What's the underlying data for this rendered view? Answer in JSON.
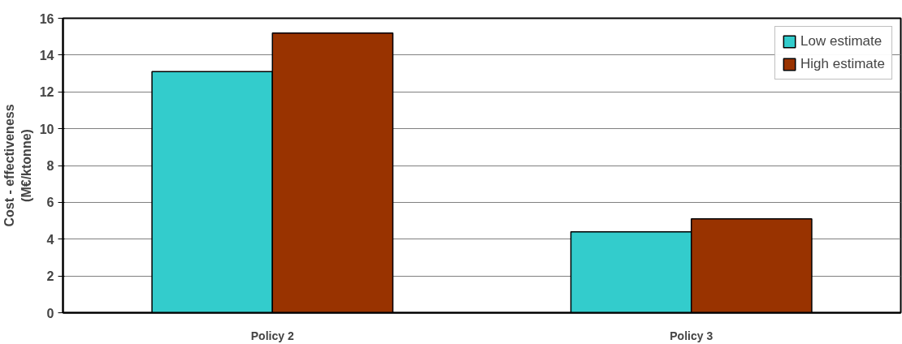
{
  "chart_data": {
    "type": "bar",
    "ylabel": "Cost - effectiveness\n(M€/ktonne)",
    "categories": [
      "Policy 2",
      "Policy 3"
    ],
    "series": [
      {
        "name": "Low estimate",
        "color": "#33cccc",
        "values": [
          13.1,
          4.4
        ]
      },
      {
        "name": "High estimate",
        "color": "#993300",
        "values": [
          15.2,
          5.1
        ]
      }
    ],
    "ylim": [
      0,
      16
    ],
    "yticks": [
      0,
      2,
      4,
      6,
      8,
      10,
      12,
      14,
      16
    ],
    "grid": "y",
    "legend": "top right"
  }
}
